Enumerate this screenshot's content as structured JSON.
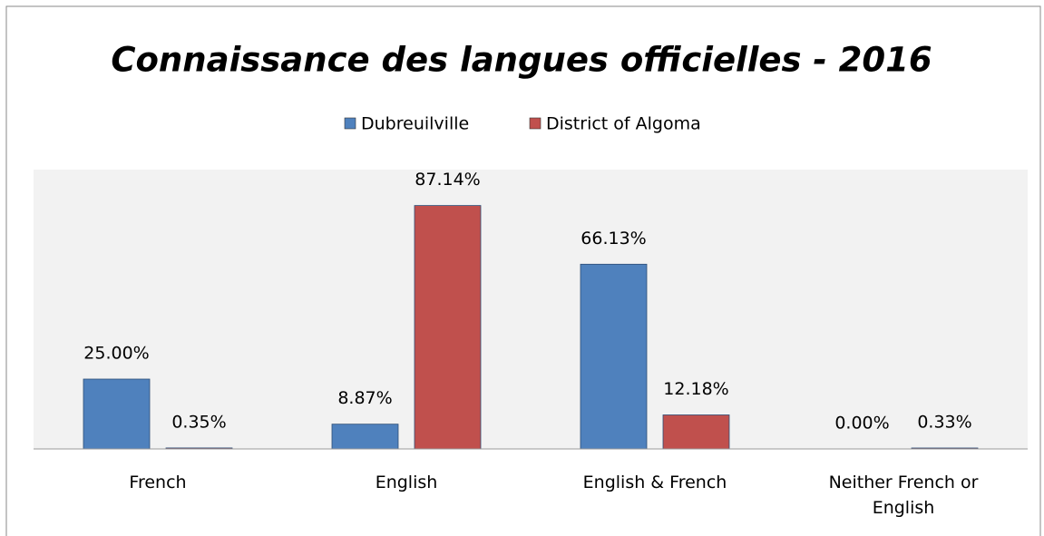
{
  "chart_data": {
    "type": "bar",
    "title": "Connaissance des langues officielles - 2016",
    "categories": [
      "French",
      "English",
      "English & French",
      "Neither French or English"
    ],
    "series": [
      {
        "name": "Dubreuilville",
        "color": "#4f81bd",
        "values": [
          25.0,
          8.87,
          66.13,
          0.0
        ],
        "value_labels": [
          "25.00%",
          "8.87%",
          "66.13%",
          "0.00%"
        ]
      },
      {
        "name": "District of Algoma",
        "color": "#c0504d",
        "values": [
          0.35,
          87.14,
          12.18,
          0.33
        ],
        "value_labels": [
          "0.35%",
          "87.14%",
          "12.18%",
          "0.33%"
        ]
      }
    ],
    "ylim": [
      0,
      100
    ],
    "legend": "top"
  }
}
